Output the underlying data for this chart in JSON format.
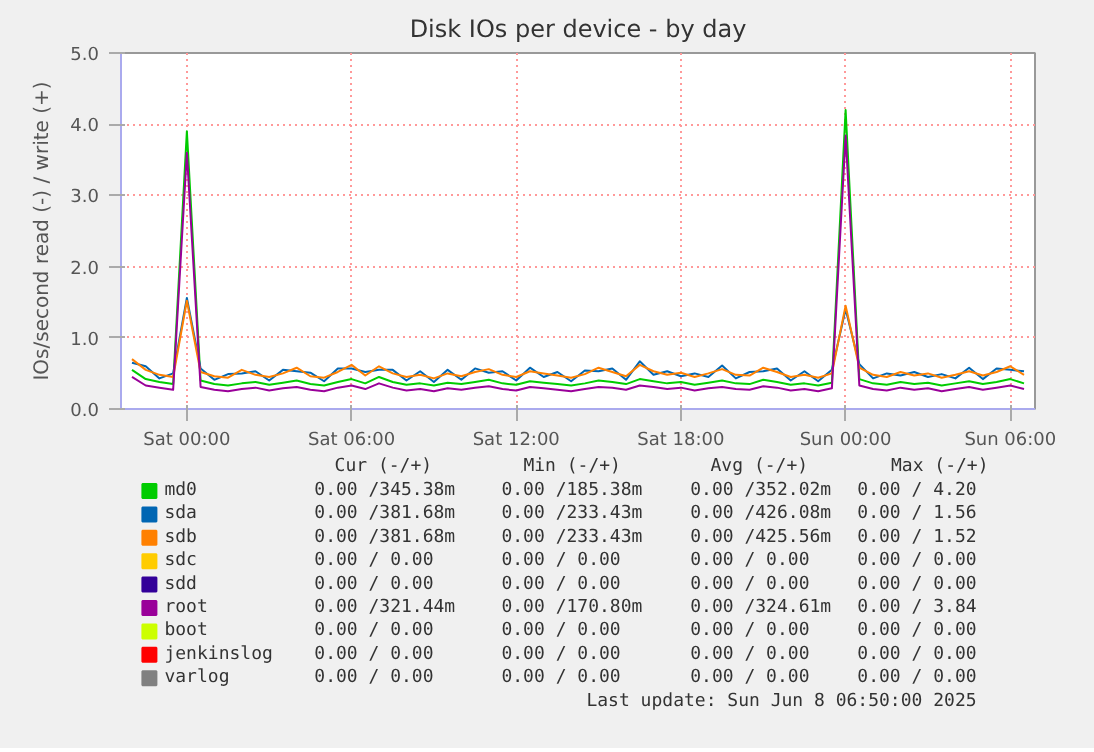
{
  "chart_data": {
    "type": "line",
    "title": "Disk IOs per device - by day",
    "ylabel": "IOs/second read (-) / write (+)",
    "x": [
      "2025-06-06T22:00",
      "2025-06-06T22:30",
      "2025-06-06T23:00",
      "2025-06-06T23:30",
      "2025-06-07T00:00",
      "2025-06-07T00:30",
      "2025-06-07T01:00",
      "2025-06-07T01:30",
      "2025-06-07T02:00",
      "2025-06-07T02:30",
      "2025-06-07T03:00",
      "2025-06-07T03:30",
      "2025-06-07T04:00",
      "2025-06-07T04:30",
      "2025-06-07T05:00",
      "2025-06-07T05:30",
      "2025-06-07T06:00",
      "2025-06-07T06:30",
      "2025-06-07T07:00",
      "2025-06-07T07:30",
      "2025-06-07T08:00",
      "2025-06-07T08:30",
      "2025-06-07T09:00",
      "2025-06-07T09:30",
      "2025-06-07T10:00",
      "2025-06-07T10:30",
      "2025-06-07T11:00",
      "2025-06-07T11:30",
      "2025-06-07T12:00",
      "2025-06-07T12:30",
      "2025-06-07T13:00",
      "2025-06-07T13:30",
      "2025-06-07T14:00",
      "2025-06-07T14:30",
      "2025-06-07T15:00",
      "2025-06-07T15:30",
      "2025-06-07T16:00",
      "2025-06-07T16:30",
      "2025-06-07T17:00",
      "2025-06-07T17:30",
      "2025-06-07T18:00",
      "2025-06-07T18:30",
      "2025-06-07T19:00",
      "2025-06-07T19:30",
      "2025-06-07T20:00",
      "2025-06-07T20:30",
      "2025-06-07T21:00",
      "2025-06-07T21:30",
      "2025-06-07T22:00",
      "2025-06-07T22:30",
      "2025-06-07T23:00",
      "2025-06-07T23:30",
      "2025-06-08T00:00",
      "2025-06-08T00:30",
      "2025-06-08T01:00",
      "2025-06-08T01:30",
      "2025-06-08T02:00",
      "2025-06-08T02:30",
      "2025-06-08T03:00",
      "2025-06-08T03:30",
      "2025-06-08T04:00",
      "2025-06-08T04:30",
      "2025-06-08T05:00",
      "2025-06-08T05:30",
      "2025-06-08T06:00",
      "2025-06-08T06:30"
    ],
    "series": [
      {
        "name": "md0",
        "color": "#00cc00",
        "values": [
          0.55,
          0.42,
          0.38,
          0.35,
          3.9,
          0.4,
          0.35,
          0.33,
          0.36,
          0.38,
          0.34,
          0.37,
          0.4,
          0.35,
          0.33,
          0.38,
          0.42,
          0.36,
          0.45,
          0.38,
          0.34,
          0.36,
          0.33,
          0.37,
          0.35,
          0.38,
          0.41,
          0.36,
          0.34,
          0.39,
          0.37,
          0.35,
          0.33,
          0.36,
          0.4,
          0.38,
          0.35,
          0.42,
          0.39,
          0.36,
          0.38,
          0.34,
          0.37,
          0.4,
          0.36,
          0.35,
          0.41,
          0.38,
          0.34,
          0.36,
          0.33,
          0.37,
          4.2,
          0.42,
          0.36,
          0.34,
          0.38,
          0.35,
          0.37,
          0.33,
          0.36,
          0.39,
          0.35,
          0.38,
          0.42,
          0.36
        ]
      },
      {
        "name": "sda",
        "color": "#0066b3",
        "values": [
          0.65,
          0.6,
          0.43,
          0.5,
          1.56,
          0.57,
          0.41,
          0.49,
          0.5,
          0.53,
          0.4,
          0.55,
          0.53,
          0.51,
          0.39,
          0.57,
          0.57,
          0.52,
          0.55,
          0.55,
          0.4,
          0.53,
          0.38,
          0.55,
          0.41,
          0.57,
          0.51,
          0.53,
          0.4,
          0.58,
          0.45,
          0.52,
          0.39,
          0.54,
          0.53,
          0.57,
          0.41,
          0.67,
          0.48,
          0.53,
          0.46,
          0.5,
          0.45,
          0.61,
          0.43,
          0.52,
          0.53,
          0.57,
          0.4,
          0.53,
          0.39,
          0.55,
          1.4,
          0.63,
          0.43,
          0.5,
          0.47,
          0.52,
          0.45,
          0.49,
          0.43,
          0.58,
          0.42,
          0.57,
          0.55,
          0.53
        ]
      },
      {
        "name": "sdb",
        "color": "#ff8000",
        "values": [
          0.7,
          0.55,
          0.48,
          0.45,
          1.52,
          0.52,
          0.46,
          0.44,
          0.55,
          0.48,
          0.45,
          0.5,
          0.58,
          0.46,
          0.44,
          0.52,
          0.62,
          0.47,
          0.6,
          0.5,
          0.45,
          0.48,
          0.43,
          0.5,
          0.46,
          0.52,
          0.56,
          0.48,
          0.45,
          0.53,
          0.5,
          0.47,
          0.44,
          0.49,
          0.58,
          0.52,
          0.46,
          0.62,
          0.53,
          0.48,
          0.51,
          0.45,
          0.5,
          0.56,
          0.48,
          0.47,
          0.58,
          0.52,
          0.45,
          0.48,
          0.44,
          0.5,
          1.45,
          0.58,
          0.48,
          0.45,
          0.52,
          0.47,
          0.5,
          0.44,
          0.48,
          0.53,
          0.47,
          0.52,
          0.6,
          0.48
        ]
      },
      {
        "name": "sdc",
        "color": "#ffcc00",
        "values": [
          null,
          null,
          null,
          null,
          null,
          null,
          null,
          null,
          null,
          null,
          null,
          null,
          null,
          null,
          null,
          null,
          null,
          null,
          null,
          null,
          null,
          null,
          null,
          null,
          null,
          null,
          null,
          null,
          null,
          null,
          null,
          null,
          null,
          null,
          null,
          null,
          null,
          null,
          null,
          null,
          null,
          null,
          null,
          null,
          null,
          null,
          null,
          null,
          null,
          null,
          null,
          null,
          null,
          null,
          null,
          null,
          null,
          null,
          null,
          null,
          null,
          null,
          null,
          null,
          null,
          null
        ]
      },
      {
        "name": "sdd",
        "color": "#330099",
        "values": [
          null,
          null,
          null,
          null,
          null,
          null,
          null,
          null,
          null,
          null,
          null,
          null,
          null,
          null,
          null,
          null,
          null,
          null,
          null,
          null,
          null,
          null,
          null,
          null,
          null,
          null,
          null,
          null,
          null,
          null,
          null,
          null,
          null,
          null,
          null,
          null,
          null,
          null,
          null,
          null,
          null,
          null,
          null,
          null,
          null,
          null,
          null,
          null,
          null,
          null,
          null,
          null,
          null,
          null,
          null,
          null,
          null,
          null,
          null,
          null,
          null,
          null,
          null,
          null,
          null,
          null
        ]
      },
      {
        "name": "root",
        "color": "#990099",
        "values": [
          0.45,
          0.33,
          0.3,
          0.27,
          3.6,
          0.31,
          0.27,
          0.25,
          0.28,
          0.3,
          0.26,
          0.29,
          0.31,
          0.27,
          0.25,
          0.3,
          0.33,
          0.28,
          0.36,
          0.3,
          0.26,
          0.28,
          0.25,
          0.29,
          0.27,
          0.3,
          0.32,
          0.28,
          0.26,
          0.31,
          0.29,
          0.27,
          0.25,
          0.28,
          0.31,
          0.3,
          0.27,
          0.33,
          0.31,
          0.28,
          0.3,
          0.26,
          0.29,
          0.31,
          0.28,
          0.27,
          0.32,
          0.3,
          0.26,
          0.28,
          0.25,
          0.29,
          3.84,
          0.33,
          0.28,
          0.26,
          0.3,
          0.27,
          0.29,
          0.25,
          0.28,
          0.31,
          0.27,
          0.3,
          0.33,
          0.28
        ]
      },
      {
        "name": "boot",
        "color": "#ccff00",
        "values": [
          null,
          null,
          null,
          null,
          null,
          null,
          null,
          null,
          null,
          null,
          null,
          null,
          null,
          null,
          null,
          null,
          null,
          null,
          null,
          null,
          null,
          null,
          null,
          null,
          null,
          null,
          null,
          null,
          null,
          null,
          null,
          null,
          null,
          null,
          null,
          null,
          null,
          null,
          null,
          null,
          null,
          null,
          null,
          null,
          null,
          null,
          null,
          null,
          null,
          null,
          null,
          null,
          null,
          null,
          null,
          null,
          null,
          null,
          null,
          null,
          null,
          null,
          null,
          null,
          null,
          null
        ]
      },
      {
        "name": "jenkinslog",
        "color": "#ff0000",
        "values": [
          null,
          null,
          null,
          null,
          null,
          null,
          null,
          null,
          null,
          null,
          null,
          null,
          null,
          null,
          null,
          null,
          null,
          null,
          null,
          null,
          null,
          null,
          null,
          null,
          null,
          null,
          null,
          null,
          null,
          null,
          null,
          null,
          null,
          null,
          null,
          null,
          null,
          null,
          null,
          null,
          null,
          null,
          null,
          null,
          null,
          null,
          null,
          null,
          null,
          null,
          null,
          null,
          null,
          null,
          null,
          null,
          null,
          null,
          null,
          null,
          null,
          null,
          null,
          null,
          null,
          null
        ]
      },
      {
        "name": "varlog",
        "color": "#808080",
        "values": [
          null,
          null,
          null,
          null,
          null,
          null,
          null,
          null,
          null,
          null,
          null,
          null,
          null,
          null,
          null,
          null,
          null,
          null,
          null,
          null,
          null,
          null,
          null,
          null,
          null,
          null,
          null,
          null,
          null,
          null,
          null,
          null,
          null,
          null,
          null,
          null,
          null,
          null,
          null,
          null,
          null,
          null,
          null,
          null,
          null,
          null,
          null,
          null,
          null,
          null,
          null,
          null,
          null,
          null,
          null,
          null,
          null,
          null,
          null,
          null,
          null,
          null,
          null,
          null,
          null,
          null
        ]
      }
    ],
    "xlim": [
      "2025-06-06T21:36",
      "2025-06-08T06:54"
    ],
    "xticks": [
      {
        "value": "2025-06-07T00:00",
        "label": "Sat 00:00"
      },
      {
        "value": "2025-06-07T06:00",
        "label": "Sat 06:00"
      },
      {
        "value": "2025-06-07T12:00",
        "label": "Sat 12:00"
      },
      {
        "value": "2025-06-07T18:00",
        "label": "Sat 18:00"
      },
      {
        "value": "2025-06-08T00:00",
        "label": "Sun 00:00"
      },
      {
        "value": "2025-06-08T06:00",
        "label": "Sun 06:00"
      }
    ],
    "ylim": [
      0,
      5.0
    ],
    "yticks": [
      {
        "value": 0,
        "label": "0.0"
      },
      {
        "value": 1,
        "label": "1.0"
      },
      {
        "value": 2,
        "label": "2.0"
      },
      {
        "value": 3,
        "label": "3.0"
      },
      {
        "value": 4,
        "label": "4.0"
      },
      {
        "value": 5,
        "label": "5.0"
      }
    ],
    "grid": true,
    "legend": "bottom",
    "marker": "none",
    "line_style": "solid",
    "annotations": [
      "Cur (-/+)",
      "Min (-/+)",
      "Avg (-/+)",
      "Max (-/+)",
      "0.00 /345.38m",
      "0.00 /185.38m",
      "0.00 /352.02m",
      "0.00 /   4.20",
      "0.00 /381.68m",
      "0.00 /233.43m",
      "0.00 /426.08m",
      "0.00 /   1.56",
      "0.00 /381.68m",
      "0.00 /233.43m",
      "0.00 /425.56m",
      "0.00 /   1.52",
      "0.00 /   0.00",
      "0.00 /   0.00",
      "0.00 /   0.00",
      "0.00 /   0.00",
      "0.00 /   0.00",
      "0.00 /   0.00",
      "0.00 /   0.00",
      "0.00 /   0.00",
      "0.00 /321.44m",
      "0.00 /170.80m",
      "0.00 /324.61m",
      "0.00 /   3.84",
      "0.00 /   0.00",
      "0.00 /   0.00",
      "0.00 /   0.00",
      "0.00 /   0.00",
      "0.00 /   0.00",
      "0.00 /   0.00",
      "0.00 /   0.00",
      "0.00 /   0.00",
      "0.00 /   0.00",
      "0.00 /   0.00",
      "0.00 /   0.00",
      "0.00 /   0.00",
      "Last update:  Sun Jun  8 06:50:00 2025"
    ]
  }
}
